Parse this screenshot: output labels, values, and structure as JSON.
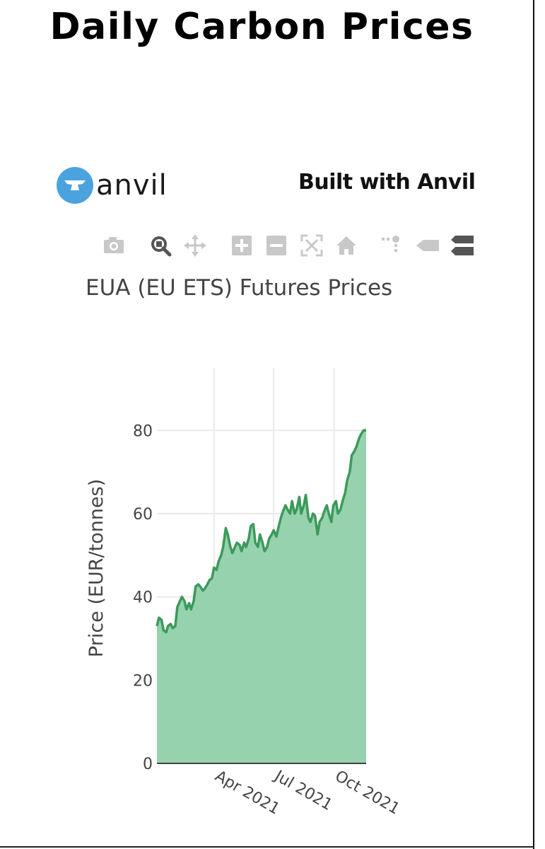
{
  "page": {
    "title": "Daily Carbon Prices"
  },
  "branding": {
    "logo_text": "anvil",
    "built_with": "Built with Anvil"
  },
  "modebar": [
    {
      "name": "camera-icon",
      "label": "Download plot as a png"
    },
    {
      "name": "zoom-icon",
      "label": "Zoom"
    },
    {
      "name": "pan-icon",
      "label": "Pan"
    },
    {
      "name": "zoom-in-icon",
      "label": "Zoom in"
    },
    {
      "name": "zoom-out-icon",
      "label": "Zoom out"
    },
    {
      "name": "autoscale-icon",
      "label": "Autoscale"
    },
    {
      "name": "home-icon",
      "label": "Reset axes"
    },
    {
      "name": "spikelines-icon",
      "label": "Toggle Spike Lines"
    },
    {
      "name": "hover-closest-icon",
      "label": "Show closest data on hover"
    },
    {
      "name": "hover-compare-icon",
      "label": "Compare data on hover"
    }
  ],
  "colors": {
    "line": "#3b9a5a",
    "fill": "#97d2ae",
    "grid": "#e9e9e9",
    "logo": "#4aa3df"
  },
  "chart_data": {
    "type": "area",
    "title": "EUA (EU ETS) Futures Prices",
    "xlabel": "",
    "ylabel": "Price (EUR/tonnes)",
    "xlim": [
      "2021-01-04",
      "2021-11-19"
    ],
    "ylim": [
      0,
      95
    ],
    "yticks": [
      0,
      20,
      40,
      60,
      80
    ],
    "xticks": [
      {
        "date": "2021-04-01",
        "label": "Apr 2021"
      },
      {
        "date": "2021-07-01",
        "label": "Jul 2021"
      },
      {
        "date": "2021-10-01",
        "label": "Oct 2021"
      }
    ],
    "grid": true,
    "series": [
      {
        "x": [
          "2021-01-04",
          "2021-01-07",
          "2021-01-11",
          "2021-01-14",
          "2021-01-18",
          "2021-01-21",
          "2021-01-25",
          "2021-01-28",
          "2021-02-01",
          "2021-02-04",
          "2021-02-08",
          "2021-02-11",
          "2021-02-15",
          "2021-02-18",
          "2021-02-22",
          "2021-02-25",
          "2021-03-01",
          "2021-03-04",
          "2021-03-08",
          "2021-03-11",
          "2021-03-15",
          "2021-03-18",
          "2021-03-22",
          "2021-03-25",
          "2021-03-29",
          "2021-04-01",
          "2021-04-05",
          "2021-04-08",
          "2021-04-12",
          "2021-04-15",
          "2021-04-19",
          "2021-04-22",
          "2021-04-26",
          "2021-04-29",
          "2021-05-03",
          "2021-05-06",
          "2021-05-10",
          "2021-05-13",
          "2021-05-17",
          "2021-05-20",
          "2021-05-24",
          "2021-05-27",
          "2021-05-31",
          "2021-06-03",
          "2021-06-07",
          "2021-06-10",
          "2021-06-14",
          "2021-06-17",
          "2021-06-21",
          "2021-06-24",
          "2021-06-28",
          "2021-07-01",
          "2021-07-05",
          "2021-07-08",
          "2021-07-12",
          "2021-07-15",
          "2021-07-19",
          "2021-07-22",
          "2021-07-26",
          "2021-07-29",
          "2021-08-02",
          "2021-08-05",
          "2021-08-09",
          "2021-08-12",
          "2021-08-16",
          "2021-08-19",
          "2021-08-23",
          "2021-08-26",
          "2021-08-30",
          "2021-09-02",
          "2021-09-06",
          "2021-09-09",
          "2021-09-13",
          "2021-09-16",
          "2021-09-20",
          "2021-09-23",
          "2021-09-27",
          "2021-09-30",
          "2021-10-04",
          "2021-10-07",
          "2021-10-11",
          "2021-10-14",
          "2021-10-18",
          "2021-10-21",
          "2021-10-25",
          "2021-10-28",
          "2021-11-01",
          "2021-11-04",
          "2021-11-08",
          "2021-11-11",
          "2021-11-15",
          "2021-11-18",
          "2021-11-19"
        ],
        "y": [
          33,
          35,
          34.5,
          32,
          31.5,
          33,
          33.5,
          32.5,
          33,
          37.5,
          39,
          40,
          39,
          37,
          38.5,
          37,
          39,
          42.5,
          43,
          42.5,
          41.5,
          42,
          43,
          44,
          44.5,
          47,
          46.5,
          48.5,
          50,
          52,
          56.5,
          55,
          52,
          50.5,
          52,
          53,
          52.5,
          51,
          53,
          52,
          54,
          57,
          57.5,
          53,
          52,
          55,
          53,
          51,
          52,
          54,
          55,
          56,
          54.5,
          56.5,
          59,
          60.5,
          62,
          61,
          60,
          63,
          60,
          61,
          64,
          60,
          62,
          64.5,
          59,
          58,
          60,
          59.5,
          55,
          58,
          59,
          60.5,
          62,
          60,
          58,
          62,
          63,
          60,
          61,
          63,
          65,
          68,
          70,
          74,
          75,
          76,
          78,
          79,
          80,
          80,
          80
        ]
      }
    ]
  }
}
